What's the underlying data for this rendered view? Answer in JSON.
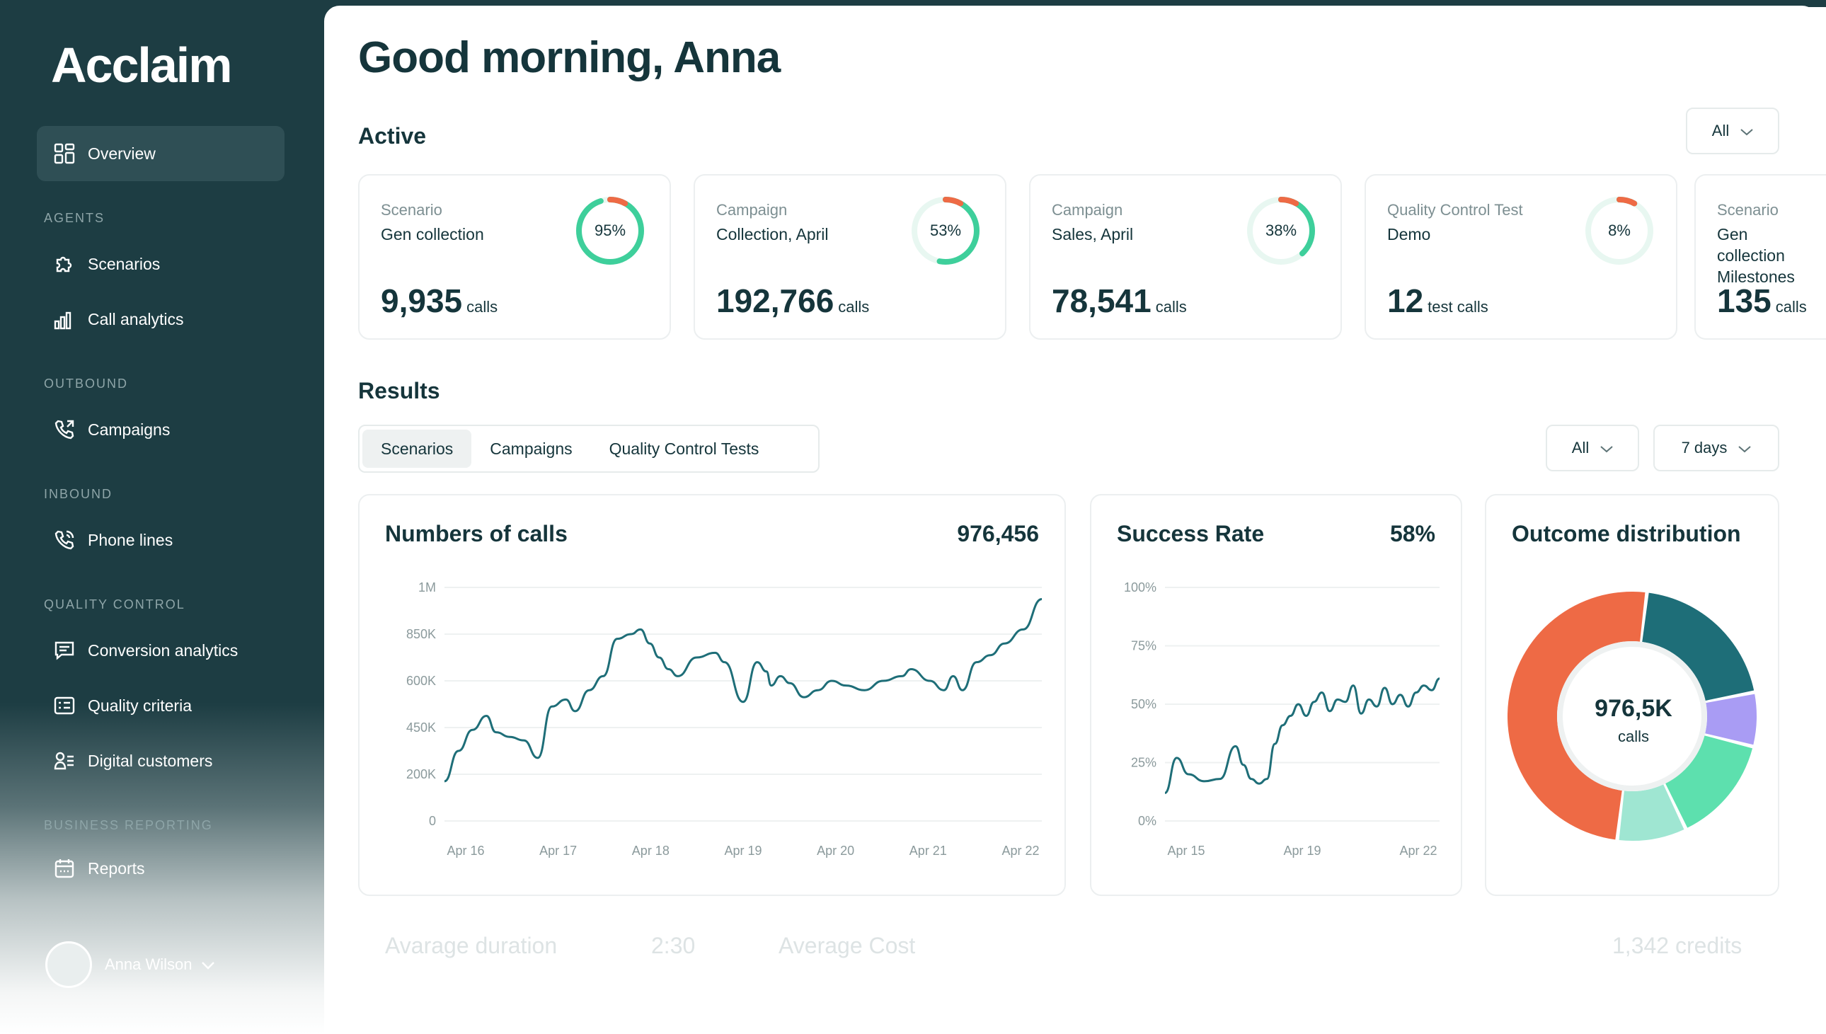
{
  "app": {
    "name": "Acclaim"
  },
  "sidebar": {
    "overview": "Overview",
    "sections": {
      "agents": "AGENTS",
      "outbound": "OUTBOUND",
      "inbound": "INBOUND",
      "quality": "QUALITY CONTROL",
      "reporting": "BUSINESS REPORTING"
    },
    "items": {
      "scenarios": "Scenarios",
      "call_analytics": "Call analytics",
      "campaigns": "Campaigns",
      "phone_lines": "Phone lines",
      "conversion_analytics": "Conversion analytics",
      "quality_criteria": "Quality criteria",
      "digital_customers": "Digital customers",
      "reports": "Reports"
    },
    "user": {
      "name": "Anna Wilson"
    }
  },
  "header": {
    "greeting": "Good morning, Anna"
  },
  "active": {
    "title": "Active",
    "filter": "All",
    "cards": [
      {
        "type": "Scenario",
        "name": "Gen collection",
        "percent": 95,
        "percent_label": "95%",
        "count": "9,935",
        "unit": "calls",
        "color": "#3ecf9b"
      },
      {
        "type": "Campaign",
        "name": "Collection, April",
        "percent": 53,
        "percent_label": "53%",
        "count": "192,766",
        "unit": "calls",
        "color": "#3ecf9b"
      },
      {
        "type": "Campaign",
        "name": "Sales, April",
        "percent": 38,
        "percent_label": "38%",
        "count": "78,541",
        "unit": "calls",
        "color": "#3ecf9b"
      },
      {
        "type": "Quality Control Test",
        "name": "Demo",
        "percent": 8,
        "percent_label": "8%",
        "count": "12",
        "unit": "test calls",
        "color": "#3ecf9b"
      },
      {
        "type": "Scenario",
        "name": "Gen collection Milestones",
        "count": "135",
        "unit": "calls"
      }
    ]
  },
  "results": {
    "title": "Results",
    "tabs": [
      "Scenarios",
      "Campaigns",
      "Quality Control Tests"
    ],
    "filter_all": "All",
    "filter_period": "7 days",
    "calls_card": {
      "title": "Numbers of calls",
      "value": "976,456"
    },
    "success_card": {
      "title": "Success Rate",
      "value": "58%"
    },
    "outcome_card": {
      "title": "Outcome distribution",
      "center_value": "976,5K",
      "center_unit": "calls"
    }
  },
  "footer_row": {
    "avg_duration_label": "Avarage duration",
    "avg_duration_value": "2:30",
    "avg_cost_label": "Average Cost",
    "avg_cost_value": "1,342 credits"
  },
  "chart_data": [
    {
      "type": "line",
      "title": "Numbers of calls",
      "x_ticks": [
        "Apr 16",
        "Apr 17",
        "Apr 18",
        "Apr 19",
        "Apr 20",
        "Apr 21",
        "Apr 22"
      ],
      "y_ticks": [
        "1M",
        "850K",
        "600K",
        "450K",
        "200K",
        "0"
      ],
      "ylim": [
        0,
        1000000
      ],
      "grid": true,
      "series": [
        {
          "color": "#1e6e78",
          "x": [
            16.0,
            16.15,
            16.3,
            16.45,
            16.55,
            16.7,
            16.85,
            17.0,
            17.15,
            17.3,
            17.4,
            17.55,
            17.7,
            17.85,
            18.0,
            18.1,
            18.2,
            18.3,
            18.4,
            18.5,
            18.7,
            18.9,
            19.0,
            19.2,
            19.35,
            19.45,
            19.5,
            19.6,
            19.7,
            19.85,
            20.0,
            20.15,
            20.3,
            20.5,
            20.7,
            20.9,
            21.0,
            21.2,
            21.35,
            21.45,
            21.55,
            21.7,
            21.85,
            22.0,
            22.2,
            22.4
          ],
          "y": [
            170000,
            300000,
            390000,
            450000,
            380000,
            360000,
            345000,
            270000,
            490000,
            520000,
            470000,
            560000,
            620000,
            780000,
            800000,
            820000,
            760000,
            700000,
            650000,
            620000,
            700000,
            720000,
            680000,
            510000,
            680000,
            640000,
            580000,
            620000,
            590000,
            530000,
            560000,
            600000,
            580000,
            560000,
            600000,
            620000,
            650000,
            600000,
            560000,
            620000,
            560000,
            680000,
            710000,
            760000,
            820000,
            950000
          ]
        }
      ]
    },
    {
      "type": "line",
      "title": "Success Rate",
      "x_ticks": [
        "Apr 15",
        "Apr 19",
        "Apr 22"
      ],
      "y_ticks": [
        "100%",
        "75%",
        "50%",
        "25%",
        "0%"
      ],
      "ylim": [
        0,
        100
      ],
      "grid": true,
      "series": [
        {
          "color": "#1e6e78",
          "x": [
            15.0,
            15.3,
            15.6,
            16.0,
            16.4,
            16.8,
            17.0,
            17.2,
            17.4,
            17.6,
            17.8,
            18.0,
            18.2,
            18.4,
            18.6,
            18.8,
            19.0,
            19.2,
            19.4,
            19.6,
            19.8,
            20.0,
            20.2,
            20.4,
            20.6,
            20.8,
            21.0,
            21.2,
            21.4,
            21.6,
            21.8,
            22.0
          ],
          "y": [
            12,
            27,
            20,
            17,
            18,
            32,
            24,
            18,
            16,
            18,
            33,
            41,
            45,
            50,
            45,
            51,
            55,
            47,
            52,
            51,
            58,
            46,
            52,
            49,
            57,
            50,
            54,
            49,
            55,
            58,
            56,
            61
          ]
        }
      ]
    },
    {
      "type": "pie",
      "title": "Outcome distribution",
      "slices": [
        {
          "value": 50,
          "color": "#ee6a45"
        },
        {
          "value": 20,
          "color": "#1e6e78"
        },
        {
          "value": 7,
          "color": "#a99cf4"
        },
        {
          "value": 14,
          "color": "#5de0ae"
        },
        {
          "value": 9,
          "color": "#9fe6d2"
        }
      ]
    }
  ]
}
